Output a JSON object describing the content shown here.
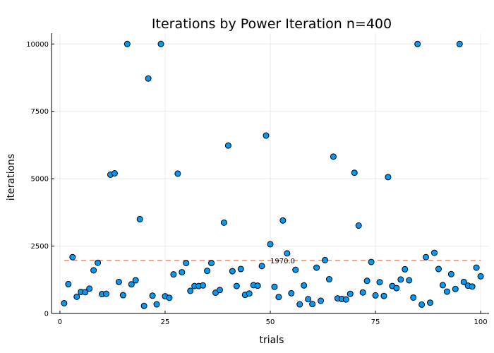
{
  "chart_data": {
    "type": "scatter",
    "title": "Iterations by Power Iteration  n=400",
    "xlabel": "trials",
    "ylabel": "iterations",
    "xlim": [
      -2,
      102
    ],
    "ylim": [
      0,
      10400
    ],
    "xticks": [
      0,
      25,
      50,
      75,
      100
    ],
    "yticks": [
      0,
      2500,
      5000,
      7500,
      10000
    ],
    "grid": true,
    "legend": "none",
    "mean_line": {
      "value": 1970,
      "label": "1970.0",
      "label_x": 50,
      "color": "#e26f46"
    },
    "marker_color": "#009af9",
    "series": [
      {
        "x": [
          1,
          2,
          3,
          4,
          5,
          6,
          7,
          8,
          9,
          10,
          11,
          12,
          13,
          14,
          15,
          16,
          17,
          18,
          19,
          20,
          21,
          22,
          23,
          24,
          25,
          26,
          27,
          28,
          29,
          30,
          31,
          32,
          33,
          34,
          35,
          36,
          37,
          38,
          39,
          40,
          41,
          42,
          43,
          44,
          45,
          46,
          47,
          48,
          49,
          50,
          51,
          52,
          53,
          54,
          55,
          56,
          57,
          58,
          59,
          60,
          61,
          62,
          63,
          64,
          65,
          66,
          67,
          68,
          69,
          70,
          71,
          72,
          73,
          74,
          75,
          76,
          77,
          78,
          79,
          80,
          81,
          82,
          83,
          84,
          85,
          86,
          87,
          88,
          89,
          90,
          91,
          92,
          93,
          94,
          95,
          96,
          97,
          98,
          99,
          100
        ],
        "y": [
          380,
          1090,
          2090,
          620,
          800,
          790,
          920,
          1600,
          1880,
          720,
          730,
          5150,
          5200,
          1170,
          680,
          10000,
          1080,
          1230,
          3500,
          280,
          8720,
          660,
          340,
          10000,
          640,
          580,
          1450,
          5190,
          1530,
          1870,
          840,
          1020,
          1020,
          1040,
          1580,
          1870,
          770,
          870,
          3370,
          6230,
          1570,
          1020,
          1650,
          690,
          740,
          1050,
          1030,
          1760,
          6600,
          2570,
          990,
          610,
          3450,
          2230,
          750,
          1620,
          340,
          1040,
          530,
          350,
          1700,
          470,
          1980,
          1270,
          5820,
          560,
          540,
          520,
          730,
          5220,
          3260,
          780,
          1210,
          1910,
          670,
          1160,
          650,
          5060,
          1020,
          940,
          1260,
          1640,
          1230,
          590,
          10000,
          330,
          2090,
          400,
          2250,
          1650,
          1050,
          810,
          1460,
          910,
          10000,
          1170,
          1030,
          1000,
          1700,
          1380
        ]
      }
    ]
  }
}
